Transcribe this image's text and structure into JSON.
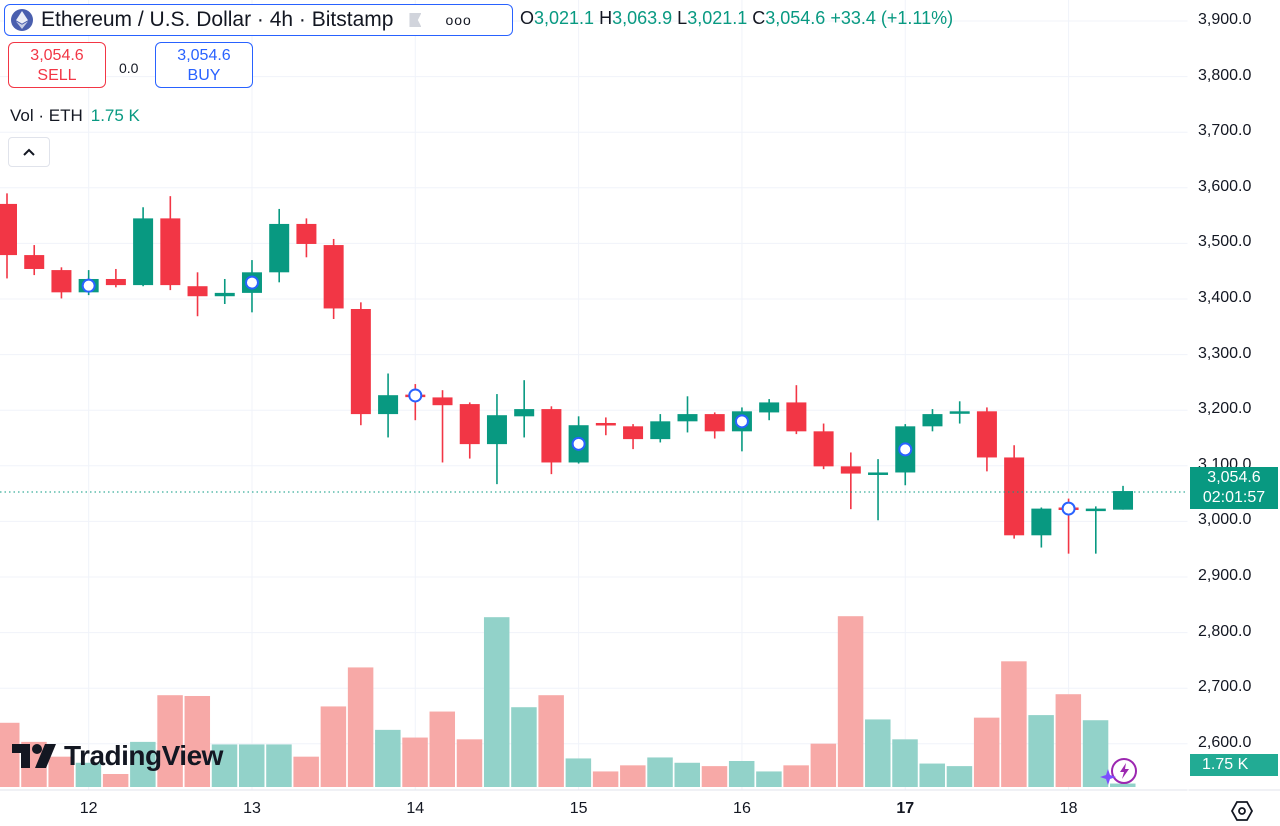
{
  "header": {
    "title": "Ethereum / U.S. Dollar · 4h · Bitstamp",
    "more_label": "ooo",
    "ohlc": {
      "o_label": "O",
      "open": "3,021.1",
      "h_label": "H",
      "high": "3,063.9",
      "l_label": "L",
      "low": "3,021.1",
      "c_label": "C",
      "close": "3,054.6",
      "change": "+33.4 (+1.11%)"
    }
  },
  "trade": {
    "sell_price": "3,054.6",
    "sell_label": "SELL",
    "spread": "0.0",
    "buy_price": "3,054.6",
    "buy_label": "BUY"
  },
  "volume_legend": {
    "label": "Vol · ETH",
    "value": "1.75 K"
  },
  "price_axis": {
    "ticks": [
      "3,900.0",
      "3,800.0",
      "3,700.0",
      "3,600.0",
      "3,500.0",
      "3,400.0",
      "3,300.0",
      "3,200.0",
      "3,100.0",
      "3,000.0",
      "2,900.0",
      "2,800.0",
      "2,700.0",
      "2,600.0"
    ],
    "current_price": "3,054.6",
    "countdown": "02:01:57",
    "volume_tag": "1.75 K"
  },
  "time_axis": {
    "days": [
      "12",
      "13",
      "14",
      "15",
      "16",
      "17",
      "18"
    ],
    "bold_day": "17"
  },
  "logo": {
    "text": "TradingView"
  },
  "colors": {
    "up": "#089981",
    "down": "#f23645",
    "vol_up": "#92d2c9",
    "vol_down": "#f7a9a7",
    "grid": "#f0f3fa",
    "marker": "#2962ff"
  },
  "chart_data": {
    "type": "candlestick",
    "symbol": "ETHUSD",
    "interval": "4h",
    "ylim": [
      2600,
      3900
    ],
    "current_price": 3054.6,
    "first_day_candle_index": 3,
    "candles_per_day": 6,
    "candles": [
      {
        "o": 3571,
        "h": 3590,
        "l": 3437,
        "c": 3479
      },
      {
        "o": 3479,
        "h": 3497,
        "l": 3443,
        "c": 3454
      },
      {
        "o": 3452,
        "h": 3457,
        "l": 3401,
        "c": 3412
      },
      {
        "o": 3412,
        "h": 3452,
        "l": 3407,
        "c": 3436
      },
      {
        "o": 3436,
        "h": 3454,
        "l": 3421,
        "c": 3425
      },
      {
        "o": 3425,
        "h": 3565,
        "l": 3423,
        "c": 3545
      },
      {
        "o": 3545,
        "h": 3585,
        "l": 3416,
        "c": 3425
      },
      {
        "o": 3423,
        "h": 3448,
        "l": 3369,
        "c": 3405
      },
      {
        "o": 3405,
        "h": 3436,
        "l": 3391,
        "c": 3411
      },
      {
        "o": 3411,
        "h": 3470,
        "l": 3376,
        "c": 3448
      },
      {
        "o": 3448,
        "h": 3562,
        "l": 3430,
        "c": 3535
      },
      {
        "o": 3535,
        "h": 3545,
        "l": 3475,
        "c": 3499
      },
      {
        "o": 3497,
        "h": 3508,
        "l": 3364,
        "c": 3383
      },
      {
        "o": 3382,
        "h": 3394,
        "l": 3173,
        "c": 3193
      },
      {
        "o": 3193,
        "h": 3266,
        "l": 3151,
        "c": 3227
      },
      {
        "o": 3228,
        "h": 3247,
        "l": 3182,
        "c": 3225
      },
      {
        "o": 3223,
        "h": 3236,
        "l": 3106,
        "c": 3209
      },
      {
        "o": 3211,
        "h": 3214,
        "l": 3113,
        "c": 3139
      },
      {
        "o": 3139,
        "h": 3229,
        "l": 3067,
        "c": 3191
      },
      {
        "o": 3189,
        "h": 3254,
        "l": 3151,
        "c": 3202
      },
      {
        "o": 3202,
        "h": 3207,
        "l": 3085,
        "c": 3106
      },
      {
        "o": 3106,
        "h": 3189,
        "l": 3104,
        "c": 3173
      },
      {
        "o": 3177,
        "h": 3187,
        "l": 3155,
        "c": 3175
      },
      {
        "o": 3171,
        "h": 3175,
        "l": 3130,
        "c": 3148
      },
      {
        "o": 3148,
        "h": 3193,
        "l": 3142,
        "c": 3180
      },
      {
        "o": 3180,
        "h": 3225,
        "l": 3160,
        "c": 3193
      },
      {
        "o": 3193,
        "h": 3196,
        "l": 3149,
        "c": 3162
      },
      {
        "o": 3162,
        "h": 3205,
        "l": 3126,
        "c": 3198
      },
      {
        "o": 3196,
        "h": 3220,
        "l": 3182,
        "c": 3214
      },
      {
        "o": 3214,
        "h": 3245,
        "l": 3157,
        "c": 3162
      },
      {
        "o": 3162,
        "h": 3176,
        "l": 3094,
        "c": 3099
      },
      {
        "o": 3099,
        "h": 3124,
        "l": 3022,
        "c": 3086
      },
      {
        "o": 3086,
        "h": 3112,
        "l": 3002,
        "c": 3088
      },
      {
        "o": 3088,
        "h": 3175,
        "l": 3065,
        "c": 3171
      },
      {
        "o": 3171,
        "h": 3202,
        "l": 3162,
        "c": 3193
      },
      {
        "o": 3194,
        "h": 3216,
        "l": 3176,
        "c": 3198
      },
      {
        "o": 3198,
        "h": 3205,
        "l": 3090,
        "c": 3115
      },
      {
        "o": 3115,
        "h": 3137,
        "l": 2969,
        "c": 2975
      },
      {
        "o": 2975,
        "h": 3025,
        "l": 2953,
        "c": 3023
      },
      {
        "o": 3025,
        "h": 3041,
        "l": 2942,
        "c": 3021
      },
      {
        "o": 3021,
        "h": 3027,
        "l": 2942,
        "c": 3023
      },
      {
        "o": 3021.1,
        "h": 3063.9,
        "l": 3021.1,
        "c": 3054.6
      }
    ],
    "volume_k": [
      32.6,
      22.9,
      15.4,
      12.3,
      6.6,
      22.9,
      46.6,
      46.2,
      21.6,
      21.6,
      21.6,
      15.4,
      40.9,
      60.7,
      29.0,
      25.1,
      38.3,
      24.2,
      86.2,
      40.5,
      46.6,
      14.5,
      7.9,
      11.0,
      15.0,
      12.3,
      10.6,
      13.2,
      7.9,
      11.0,
      22.0,
      86.7,
      34.3,
      24.2,
      11.9,
      10.6,
      35.2,
      63.8,
      36.5,
      47.1,
      33.9,
      1.75
    ],
    "volume_max_k": 90,
    "event_markers": [
      3,
      9,
      15,
      21,
      27,
      33,
      39
    ]
  }
}
